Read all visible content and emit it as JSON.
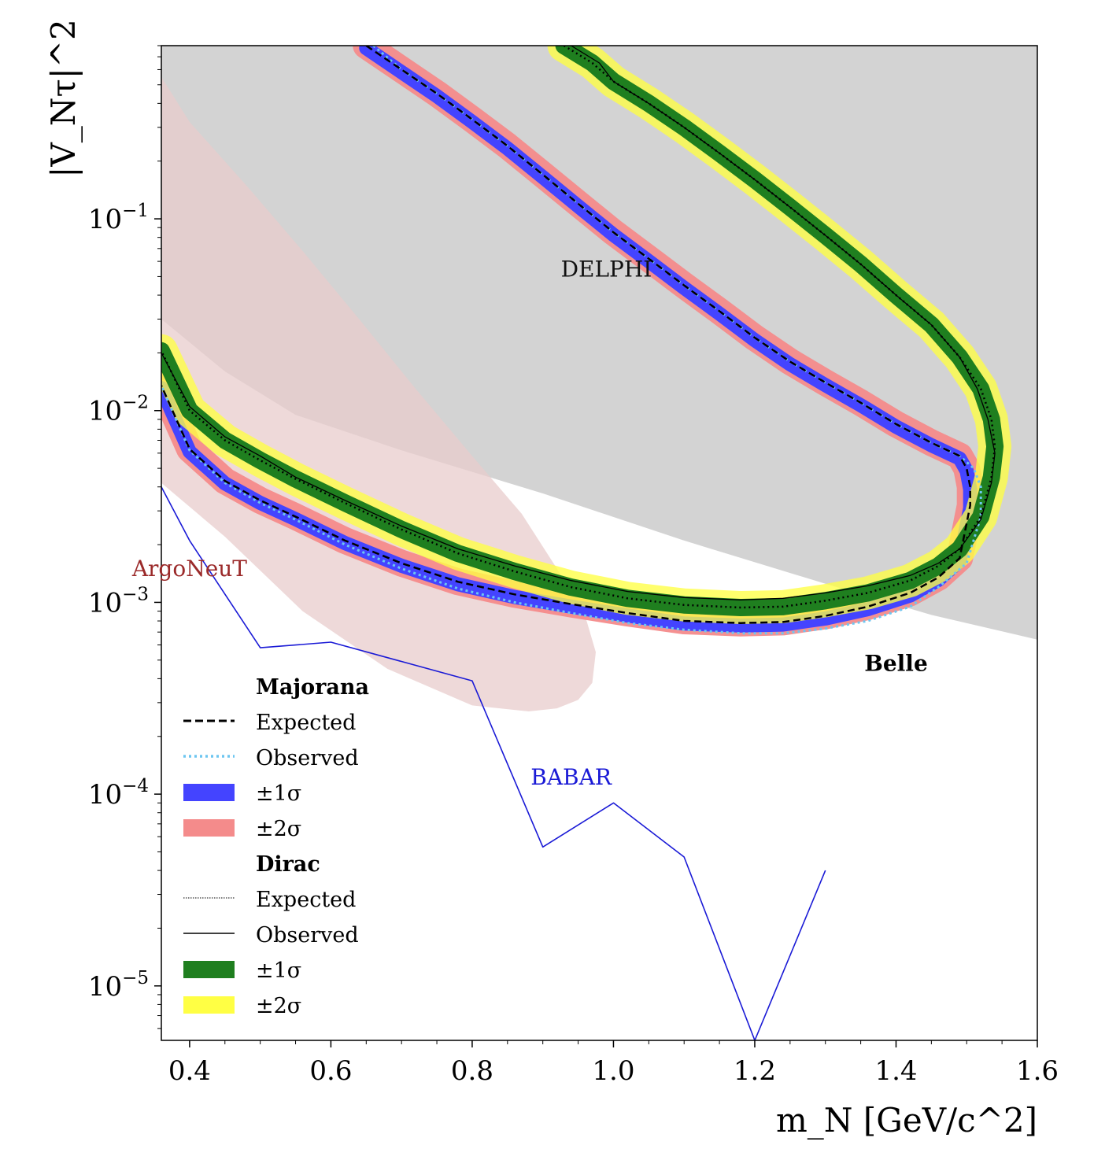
{
  "chart_data": {
    "type": "line",
    "xlabel": "m_N [GeV/c^2]",
    "ylabel": "|V_Nτ|^2",
    "xlim": [
      0.36,
      1.6
    ],
    "ylim": [
      5.2e-06,
      0.8
    ],
    "yscale": "log",
    "xticks": [
      "0.4",
      "0.6",
      "0.8",
      "1.0",
      "1.2",
      "1.4",
      "1.6"
    ],
    "yticks": [
      {
        "value": 1e-05,
        "base": "10",
        "exp": "−5"
      },
      {
        "value": 0.0001,
        "base": "10",
        "exp": "−4"
      },
      {
        "value": 0.001,
        "base": "10",
        "exp": "−3"
      },
      {
        "value": 0.01,
        "base": "10",
        "exp": "−2"
      },
      {
        "value": 0.1,
        "base": "10",
        "exp": "−1"
      }
    ],
    "grid": false,
    "legend_position": "lower-left",
    "colors": {
      "delphi": "#d3d3d3",
      "argoneut": "#e8cccc",
      "argoneut_text": "#9b2a2a",
      "babar": "#1a1ad6",
      "maj_1sigma": "#4444ff",
      "maj_2sigma": "#f48b8b",
      "dirac_1sigma": "#1f7f1f",
      "dirac_2sigma": "#ffff44",
      "maj_observed": "#6ec6f0"
    },
    "annotations": [
      {
        "text": "DELPHI",
        "x": 0.99,
        "y": 0.05
      },
      {
        "text": "ArgoNeuT",
        "x": 0.4,
        "y": 0.00137
      },
      {
        "text": "BABAR",
        "x": 0.94,
        "y": 0.000112
      },
      {
        "text": "Belle",
        "x": 1.4,
        "y": 0.00044
      }
    ],
    "series": [
      {
        "name": "DELPHI",
        "kind": "excluded-region",
        "lower_boundary": {
          "x": [
            0.36,
            0.45,
            0.55,
            0.7,
            0.9,
            1.1,
            1.3,
            1.45,
            1.6
          ],
          "y": [
            0.03,
            0.016,
            0.0095,
            0.0062,
            0.0037,
            0.0021,
            0.00125,
            0.00086,
            0.00064
          ]
        }
      },
      {
        "name": "ArgoNeuT",
        "kind": "excluded-region",
        "polygon": {
          "x": [
            0.36,
            0.4,
            0.48,
            0.56,
            0.64,
            0.72,
            0.8,
            0.87,
            0.92,
            0.96,
            0.975,
            0.97,
            0.95,
            0.92,
            0.88,
            0.8,
            0.68,
            0.56,
            0.45,
            0.36
          ],
          "y": [
            0.55,
            0.32,
            0.15,
            0.068,
            0.03,
            0.013,
            0.0058,
            0.0029,
            0.0015,
            0.00085,
            0.00055,
            0.00038,
            0.00031,
            0.00028,
            0.00027,
            0.00029,
            0.00045,
            0.0009,
            0.0022,
            0.0042
          ]
        }
      },
      {
        "name": "BABAR",
        "kind": "limit-line",
        "x": [
          0.36,
          0.4,
          0.5,
          0.6,
          0.8,
          0.9,
          1.0,
          1.1,
          1.2,
          1.3
        ],
        "y": [
          0.004,
          0.0021,
          0.00058,
          0.00062,
          0.00039,
          5.3e-05,
          9e-05,
          4.7e-05,
          5.2e-06,
          4e-05
        ]
      },
      {
        "name": "Majorana Expected",
        "kind": "contour",
        "x": [
          0.65,
          0.7,
          0.75,
          0.8,
          0.85,
          0.9,
          0.95,
          1.0,
          1.05,
          1.1,
          1.15,
          1.2,
          1.25,
          1.3,
          1.35,
          1.4,
          1.45,
          1.49,
          1.5,
          1.505,
          1.505,
          1.49,
          1.46,
          1.42,
          1.36,
          1.3,
          1.24,
          1.18,
          1.1,
          1.02,
          0.94,
          0.86,
          0.78,
          0.7,
          0.62,
          0.55,
          0.5,
          0.45,
          0.4,
          0.36
        ],
        "y": [
          0.8,
          0.6,
          0.45,
          0.33,
          0.24,
          0.17,
          0.12,
          0.085,
          0.062,
          0.045,
          0.033,
          0.024,
          0.018,
          0.014,
          0.011,
          0.0085,
          0.0068,
          0.0058,
          0.005,
          0.004,
          0.0032,
          0.0017,
          0.00135,
          0.00112,
          0.00095,
          0.00085,
          0.00079,
          0.00078,
          0.0008,
          0.00088,
          0.00098,
          0.0011,
          0.00128,
          0.0016,
          0.0021,
          0.0028,
          0.0034,
          0.0043,
          0.0063,
          0.0135
        ]
      },
      {
        "name": "Majorana Observed",
        "kind": "contour",
        "x": [
          0.66,
          0.7,
          0.75,
          0.8,
          0.85,
          0.9,
          0.95,
          1.0,
          1.05,
          1.1,
          1.15,
          1.2,
          1.25,
          1.3,
          1.35,
          1.4,
          1.45,
          1.49,
          1.51,
          1.52,
          1.52,
          1.5,
          1.46,
          1.42,
          1.36,
          1.3,
          1.24,
          1.18,
          1.1,
          1.02,
          0.94,
          0.86,
          0.78,
          0.7,
          0.62,
          0.55,
          0.5,
          0.45,
          0.4,
          0.36
        ],
        "y": [
          0.8,
          0.6,
          0.45,
          0.33,
          0.24,
          0.17,
          0.12,
          0.085,
          0.062,
          0.045,
          0.033,
          0.024,
          0.018,
          0.014,
          0.011,
          0.0085,
          0.0068,
          0.0058,
          0.005,
          0.004,
          0.0028,
          0.0016,
          0.0012,
          0.00095,
          0.0008,
          0.00073,
          0.00069,
          0.00069,
          0.00072,
          0.00078,
          0.00088,
          0.001,
          0.00118,
          0.0015,
          0.002,
          0.0027,
          0.0033,
          0.0042,
          0.0062,
          0.0135
        ]
      },
      {
        "name": "Dirac Expected",
        "kind": "contour",
        "x": [
          0.93,
          0.97,
          1.0,
          1.05,
          1.1,
          1.15,
          1.2,
          1.25,
          1.3,
          1.35,
          1.4,
          1.45,
          1.49,
          1.52,
          1.535,
          1.54,
          1.535,
          1.52,
          1.49,
          1.46,
          1.42,
          1.36,
          1.3,
          1.24,
          1.18,
          1.1,
          1.02,
          0.94,
          0.86,
          0.78,
          0.7,
          0.62,
          0.55,
          0.5,
          0.45,
          0.4,
          0.36
        ],
        "y": [
          0.8,
          0.65,
          0.52,
          0.4,
          0.3,
          0.22,
          0.16,
          0.115,
          0.082,
          0.058,
          0.04,
          0.028,
          0.019,
          0.013,
          0.009,
          0.0065,
          0.0045,
          0.0028,
          0.0019,
          0.00155,
          0.0013,
          0.00112,
          0.00102,
          0.00095,
          0.00094,
          0.00097,
          0.00105,
          0.0012,
          0.00145,
          0.0018,
          0.0024,
          0.0033,
          0.0044,
          0.0055,
          0.007,
          0.01,
          0.0205
        ]
      },
      {
        "name": "Dirac Observed",
        "kind": "contour",
        "x": [
          0.94,
          0.98,
          1.0,
          1.05,
          1.1,
          1.15,
          1.2,
          1.25,
          1.3,
          1.35,
          1.4,
          1.45,
          1.49,
          1.515,
          1.53,
          1.54,
          1.535,
          1.52,
          1.49,
          1.46,
          1.42,
          1.36,
          1.3,
          1.24,
          1.18,
          1.1,
          1.02,
          0.94,
          0.86,
          0.78,
          0.7,
          0.62,
          0.55,
          0.5,
          0.45,
          0.4,
          0.36
        ],
        "y": [
          0.8,
          0.65,
          0.52,
          0.4,
          0.3,
          0.22,
          0.16,
          0.115,
          0.082,
          0.058,
          0.04,
          0.028,
          0.019,
          0.013,
          0.009,
          0.006,
          0.0042,
          0.0027,
          0.0019,
          0.0016,
          0.00138,
          0.00122,
          0.00112,
          0.00105,
          0.00103,
          0.00106,
          0.00114,
          0.0013,
          0.00155,
          0.0019,
          0.0025,
          0.0034,
          0.0045,
          0.0058,
          0.0073,
          0.0105,
          0.02
        ]
      },
      {
        "name": "±1σ",
        "kind": "band",
        "group": "Majorana",
        "about": "Majorana Expected"
      },
      {
        "name": "±2σ",
        "kind": "band",
        "group": "Majorana",
        "about": "Majorana Expected"
      },
      {
        "name": "±1σ",
        "kind": "band",
        "group": "Dirac",
        "about": "Dirac Expected"
      },
      {
        "name": "±2σ",
        "kind": "band",
        "group": "Dirac",
        "about": "Dirac Expected"
      }
    ],
    "legend": {
      "majorana_title": "Majorana",
      "majorana_items": [
        {
          "label": "Expected",
          "style": "dashed"
        },
        {
          "label": "Observed",
          "style": "dotted-lightblue"
        },
        {
          "label": "±1σ",
          "style": "patch-blue"
        },
        {
          "label": "±2σ",
          "style": "patch-red"
        }
      ],
      "dirac_title": "Dirac",
      "dirac_items": [
        {
          "label": "Expected",
          "style": "dotted-thin"
        },
        {
          "label": "Observed",
          "style": "solid-thin"
        },
        {
          "label": "±1σ",
          "style": "patch-green"
        },
        {
          "label": "±2σ",
          "style": "patch-yellow"
        }
      ]
    }
  }
}
